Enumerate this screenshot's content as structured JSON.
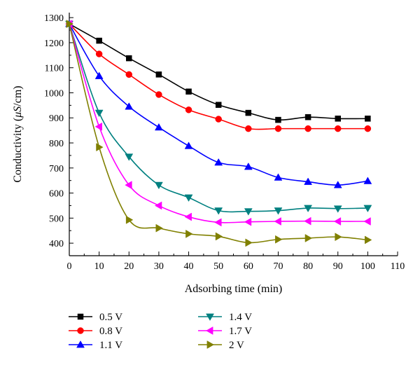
{
  "chart_data": {
    "type": "line",
    "title": "",
    "xlabel": "Adsorbing time (min)",
    "ylabel_parts": [
      "Conductivity (",
      "μS",
      "/cm)"
    ],
    "xlim": [
      0,
      110
    ],
    "ylim": [
      350,
      1320
    ],
    "xticks": [
      0,
      10,
      20,
      30,
      40,
      50,
      60,
      70,
      80,
      90,
      100,
      110
    ],
    "yticks": [
      400,
      500,
      600,
      700,
      800,
      900,
      1000,
      1100,
      1200,
      1300
    ],
    "x": [
      0,
      10,
      20,
      30,
      40,
      50,
      60,
      70,
      80,
      90,
      100
    ],
    "grid": false,
    "legend_position": "bottom",
    "series": [
      {
        "name": "0.5 V",
        "color": "#000000",
        "marker": "square",
        "values": [
          1275,
          1208,
          1138,
          1073,
          1005,
          952,
          920,
          892,
          903,
          897,
          897
        ]
      },
      {
        "name": "0.8 V",
        "color": "#ff0000",
        "marker": "circle",
        "values": [
          1275,
          1155,
          1073,
          993,
          932,
          895,
          857,
          857,
          857,
          857,
          857
        ]
      },
      {
        "name": "1.1 V",
        "color": "#0000ff",
        "marker": "triangle-up",
        "values": [
          1275,
          1067,
          945,
          862,
          788,
          722,
          705,
          662,
          645,
          632,
          648
        ]
      },
      {
        "name": "1.4 V",
        "color": "#008080",
        "marker": "triangle-down",
        "values": [
          1275,
          920,
          745,
          632,
          582,
          530,
          527,
          530,
          540,
          538,
          540
        ]
      },
      {
        "name": "1.7 V",
        "color": "#ff00ff",
        "marker": "triangle-left",
        "values": [
          1275,
          865,
          632,
          550,
          505,
          483,
          485,
          487,
          488,
          487,
          487
        ]
      },
      {
        "name": "2 V",
        "color": "#808000",
        "marker": "triangle-right",
        "values": [
          1275,
          783,
          493,
          460,
          437,
          427,
          402,
          415,
          420,
          425,
          413
        ]
      }
    ]
  }
}
